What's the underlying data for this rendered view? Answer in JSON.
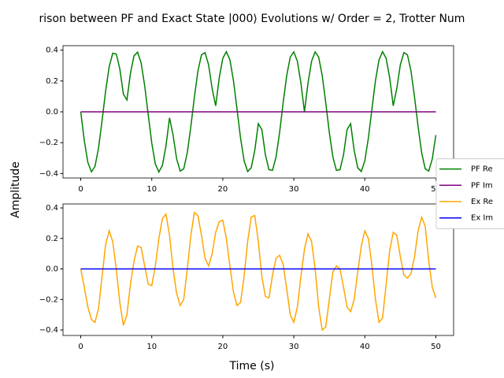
{
  "chart_data": {
    "type": "line",
    "title": "rison between PF and Exact State |000⟩ Evolutions w/ Order = 2, Trotter Num",
    "xlabel": "Time (s)",
    "ylabel": "Amplitude",
    "legend": "center right",
    "x": [
      0,
      0.5,
      1,
      1.5,
      2,
      2.5,
      3,
      3.5,
      4,
      4.5,
      5,
      5.5,
      6,
      6.5,
      7,
      7.5,
      8,
      8.5,
      9,
      9.5,
      10,
      10.5,
      11,
      11.5,
      12,
      12.5,
      13,
      13.5,
      14,
      14.5,
      15,
      15.5,
      16,
      16.5,
      17,
      17.5,
      18,
      18.5,
      19,
      19.5,
      20,
      20.5,
      21,
      21.5,
      22,
      22.5,
      23,
      23.5,
      24,
      24.5,
      25,
      25.5,
      26,
      26.5,
      27,
      27.5,
      28,
      28.5,
      29,
      29.5,
      30,
      30.5,
      31,
      31.5,
      32,
      32.5,
      33,
      33.5,
      34,
      34.5,
      35,
      35.5,
      36,
      36.5,
      37,
      37.5,
      38,
      38.5,
      39,
      39.5,
      40,
      40.5,
      41,
      41.5,
      42,
      42.5,
      43,
      43.5,
      44,
      44.5,
      45,
      45.5,
      46,
      46.5,
      47,
      47.5,
      48,
      48.5,
      49,
      49.5,
      50
    ],
    "panels": [
      {
        "xlim": [
          -2.5,
          52.5
        ],
        "xticks": [
          0,
          10,
          20,
          30,
          40,
          50
        ],
        "ylim": [
          -0.429,
          0.429
        ],
        "yticks": [
          {
            "value": -0.4,
            "label": "−0.4"
          },
          {
            "value": -0.2,
            "label": "−0.2"
          },
          {
            "value": 0,
            "label": "0.0"
          },
          0.2,
          0.4
        ],
        "series": [
          {
            "name": "PF Re",
            "color": "#008000",
            "values": [
              0,
              -0.187,
              -0.328,
              -0.389,
              -0.355,
              -0.235,
              -0.058,
              0.134,
              0.292,
              0.38,
              0.375,
              0.279,
              0.115,
              0.077,
              0.251,
              0.363,
              0.387,
              0.317,
              0.17,
              -0.019,
              -0.203,
              -0.338,
              -0.39,
              -0.347,
              -0.22,
              -0.039,
              -0.151,
              -0.305,
              -0.384,
              -0.37,
              -0.265,
              -0.096,
              0.096,
              0.265,
              0.37,
              0.384,
              0.305,
              0.151,
              0.039,
              0.22,
              0.347,
              0.39,
              0.338,
              0.203,
              0.019,
              -0.17,
              -0.317,
              -0.387,
              -0.363,
              -0.251,
              -0.077,
              -0.115,
              -0.279,
              -0.375,
              -0.38,
              -0.292,
              -0.134,
              0.058,
              0.235,
              0.355,
              0.389,
              0.328,
              0.187,
              0,
              0.187,
              0.328,
              0.389,
              0.355,
              0.235,
              0.058,
              -0.134,
              -0.292,
              -0.38,
              -0.375,
              -0.279,
              -0.115,
              -0.077,
              -0.251,
              -0.363,
              -0.387,
              -0.317,
              -0.17,
              0.019,
              0.203,
              0.338,
              0.39,
              0.347,
              0.22,
              0.039,
              0.151,
              0.305,
              0.384,
              0.37,
              0.265,
              0.096,
              -0.096,
              -0.265,
              -0.37,
              -0.384,
              -0.305,
              -0.151
            ]
          },
          {
            "name": "PF Im",
            "color": "#800080",
            "x": [
              0,
              50
            ],
            "values": [
              0,
              0
            ]
          }
        ]
      },
      {
        "xlim": [
          -2.5,
          52.5
        ],
        "xticks": [
          0,
          10,
          20,
          30,
          40,
          50
        ],
        "ylim": [
          -0.436,
          0.426
        ],
        "yticks": [
          {
            "value": -0.4,
            "label": "−0.4"
          },
          {
            "value": -0.2,
            "label": "−0.2"
          },
          {
            "value": 0,
            "label": "0.0"
          },
          0.2,
          0.4
        ],
        "series": [
          {
            "name": "Ex Re",
            "color": "#ffa500",
            "values": [
              0,
              -0.12,
              -0.25,
              -0.33,
              -0.35,
              -0.26,
              -0.05,
              0.16,
              0.25,
              0.18,
              0,
              -0.22,
              -0.37,
              -0.3,
              -0.1,
              0.05,
              0.15,
              0.14,
              0.02,
              -0.1,
              -0.11,
              0.02,
              0.2,
              0.33,
              0.36,
              0.22,
              0,
              -0.16,
              -0.24,
              -0.2,
              0,
              0.22,
              0.37,
              0.35,
              0.22,
              0.07,
              0.02,
              0.1,
              0.24,
              0.31,
              0.32,
              0.2,
              0.02,
              -0.15,
              -0.24,
              -0.22,
              -0.05,
              0.18,
              0.34,
              0.35,
              0.18,
              -0.05,
              -0.18,
              -0.19,
              -0.04,
              0.07,
              0.09,
              0.03,
              -0.13,
              -0.3,
              -0.35,
              -0.25,
              -0.05,
              0.13,
              0.23,
              0.18,
              0,
              -0.25,
              -0.4,
              -0.38,
              -0.2,
              -0.02,
              0.02,
              0,
              -0.12,
              -0.25,
              -0.28,
              -0.2,
              -0.02,
              0.15,
              0.25,
              0.2,
              0.02,
              -0.2,
              -0.35,
              -0.32,
              -0.1,
              0.12,
              0.24,
              0.22,
              0.08,
              -0.04,
              -0.06,
              -0.03,
              0.08,
              0.25,
              0.34,
              0.28,
              0.05,
              -0.12,
              -0.19
            ]
          },
          {
            "name": "Ex Im",
            "color": "#0000ff",
            "x": [
              0,
              50
            ],
            "values": [
              0,
              0
            ]
          }
        ]
      }
    ]
  }
}
